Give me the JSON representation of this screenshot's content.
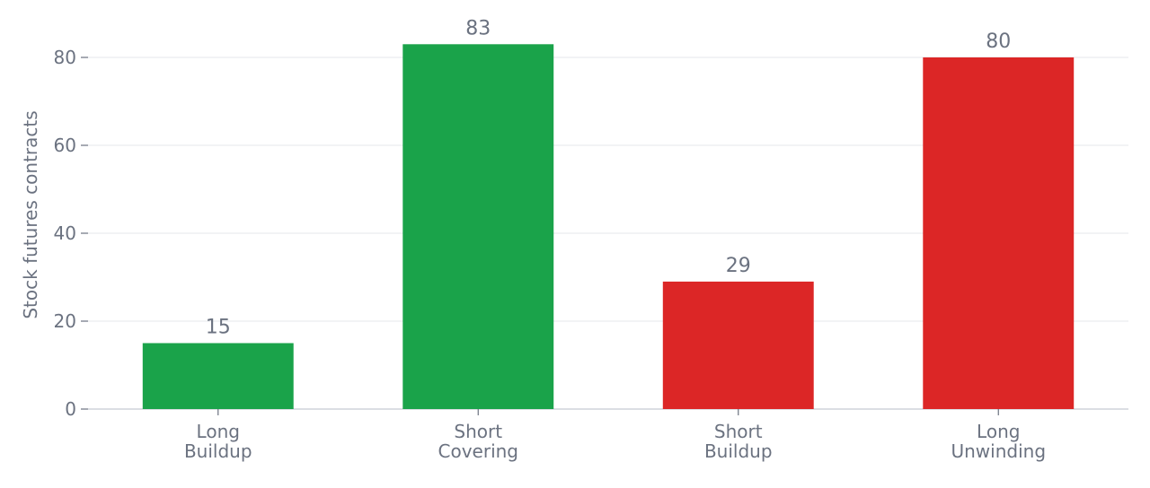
{
  "chart_data": {
    "type": "bar",
    "categories": [
      "Long\nBuildup",
      "Short\nCovering",
      "Short\nBuildup",
      "Long\nUnwinding"
    ],
    "values": [
      15,
      83,
      29,
      80
    ],
    "bar_colors": [
      "#1aa34a",
      "#1aa34a",
      "#dc2626",
      "#dc2626"
    ],
    "data_labels": [
      "15",
      "83",
      "29",
      "80"
    ],
    "title": "",
    "xlabel": "",
    "ylabel": "Stock futures contracts",
    "ylim": [
      0,
      90
    ],
    "yticks": [
      0,
      20,
      40,
      60,
      80
    ],
    "grid": true,
    "legend": "none"
  },
  "colors": {
    "text": "#6b7280",
    "grid": "#e5e7eb",
    "axis": "#cfd3da"
  }
}
